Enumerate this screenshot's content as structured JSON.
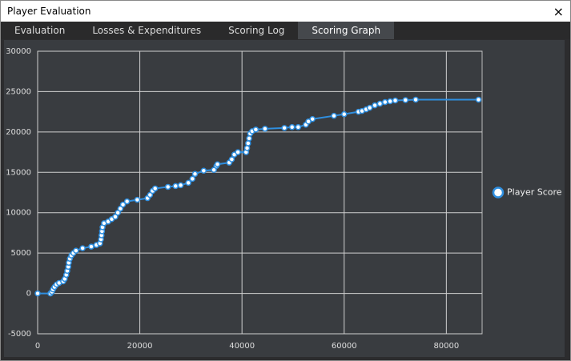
{
  "window": {
    "title": "Player Evaluation",
    "close": "×"
  },
  "tabs": [
    "Evaluation",
    "Losses & Expenditures",
    "Scoring Log",
    "Scoring Graph"
  ],
  "active_tab": 3,
  "chart_data": {
    "type": "line",
    "x": [
      0,
      2500,
      2800,
      3000,
      3300,
      3700,
      4200,
      5000,
      5300,
      5600,
      5800,
      6000,
      6100,
      6300,
      6600,
      7000,
      7500,
      8800,
      10500,
      11500,
      12200,
      12400,
      12500,
      12600,
      12700,
      13000,
      13800,
      14500,
      15200,
      15700,
      16200,
      16700,
      17500,
      19500,
      21500,
      22000,
      22500,
      23000,
      25500,
      27000,
      28000,
      29500,
      30300,
      30800,
      32500,
      34500,
      35000,
      35200,
      37500,
      38000,
      38500,
      39200,
      40800,
      41000,
      41200,
      41400,
      41600,
      42000,
      42700,
      44500,
      48300,
      49800,
      51000,
      52500,
      53000,
      53800,
      58000,
      60000,
      62800,
      63500,
      64300,
      65000,
      66000,
      67000,
      68000,
      69000,
      70000,
      72000,
      74000,
      86300
    ],
    "series": [
      {
        "name": "Player Score",
        "color": "#2f8fe0",
        "values": [
          0,
          0,
          200,
          500,
          800,
          1100,
          1300,
          1500,
          1800,
          2300,
          2800,
          3300,
          3800,
          4300,
          4700,
          5000,
          5300,
          5600,
          5800,
          6000,
          6200,
          6700,
          7200,
          7700,
          8200,
          8700,
          8900,
          9200,
          9500,
          10000,
          10500,
          11000,
          11400,
          11600,
          11800,
          12200,
          12700,
          13000,
          13200,
          13300,
          13400,
          13700,
          14200,
          14800,
          15200,
          15300,
          15800,
          16000,
          16200,
          16600,
          17200,
          17500,
          17500,
          18000,
          18600,
          19200,
          19800,
          20100,
          20300,
          20400,
          20500,
          20600,
          20600,
          20900,
          21300,
          21600,
          22000,
          22200,
          22500,
          22600,
          22800,
          23000,
          23300,
          23500,
          23700,
          23800,
          23900,
          23950,
          24000,
          24000
        ]
      }
    ],
    "xlim": [
      0,
      87000
    ],
    "ylim": [
      -5000,
      30000
    ],
    "xticks": [
      0,
      20000,
      40000,
      60000,
      80000
    ],
    "yticks": [
      -5000,
      0,
      5000,
      10000,
      15000,
      20000,
      25000,
      30000
    ],
    "grid": true,
    "legend": "right"
  }
}
